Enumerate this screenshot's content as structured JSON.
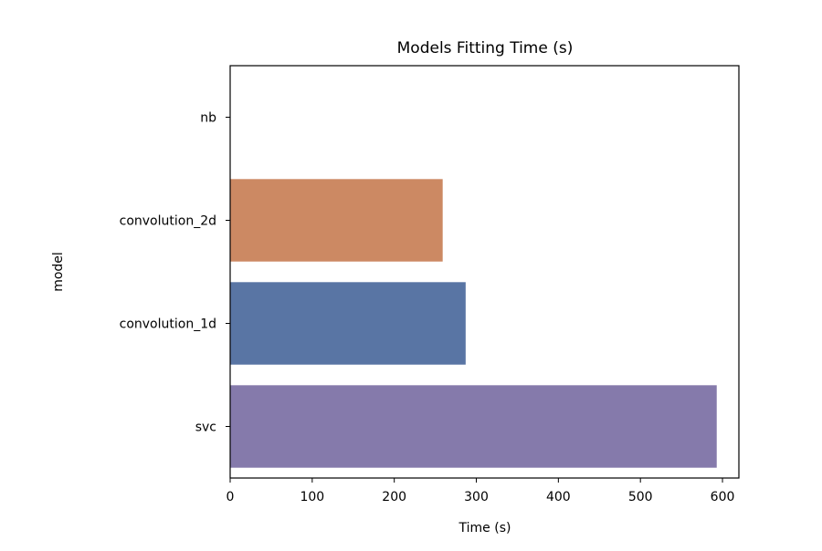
{
  "chart_data": {
    "type": "bar",
    "orientation": "horizontal",
    "title": "Models Fitting Time (s)",
    "xlabel": "Time (s)",
    "ylabel": "model",
    "xlim": [
      0,
      620
    ],
    "xticks": [
      0,
      100,
      200,
      300,
      400,
      500,
      600
    ],
    "grid": false,
    "categories": [
      "nb",
      "convolution_2d",
      "convolution_1d",
      "svc"
    ],
    "values": [
      0.5,
      259,
      287,
      593
    ],
    "colors": [
      "#c44e52",
      "#cc8963",
      "#5975a4",
      "#857aab"
    ]
  }
}
